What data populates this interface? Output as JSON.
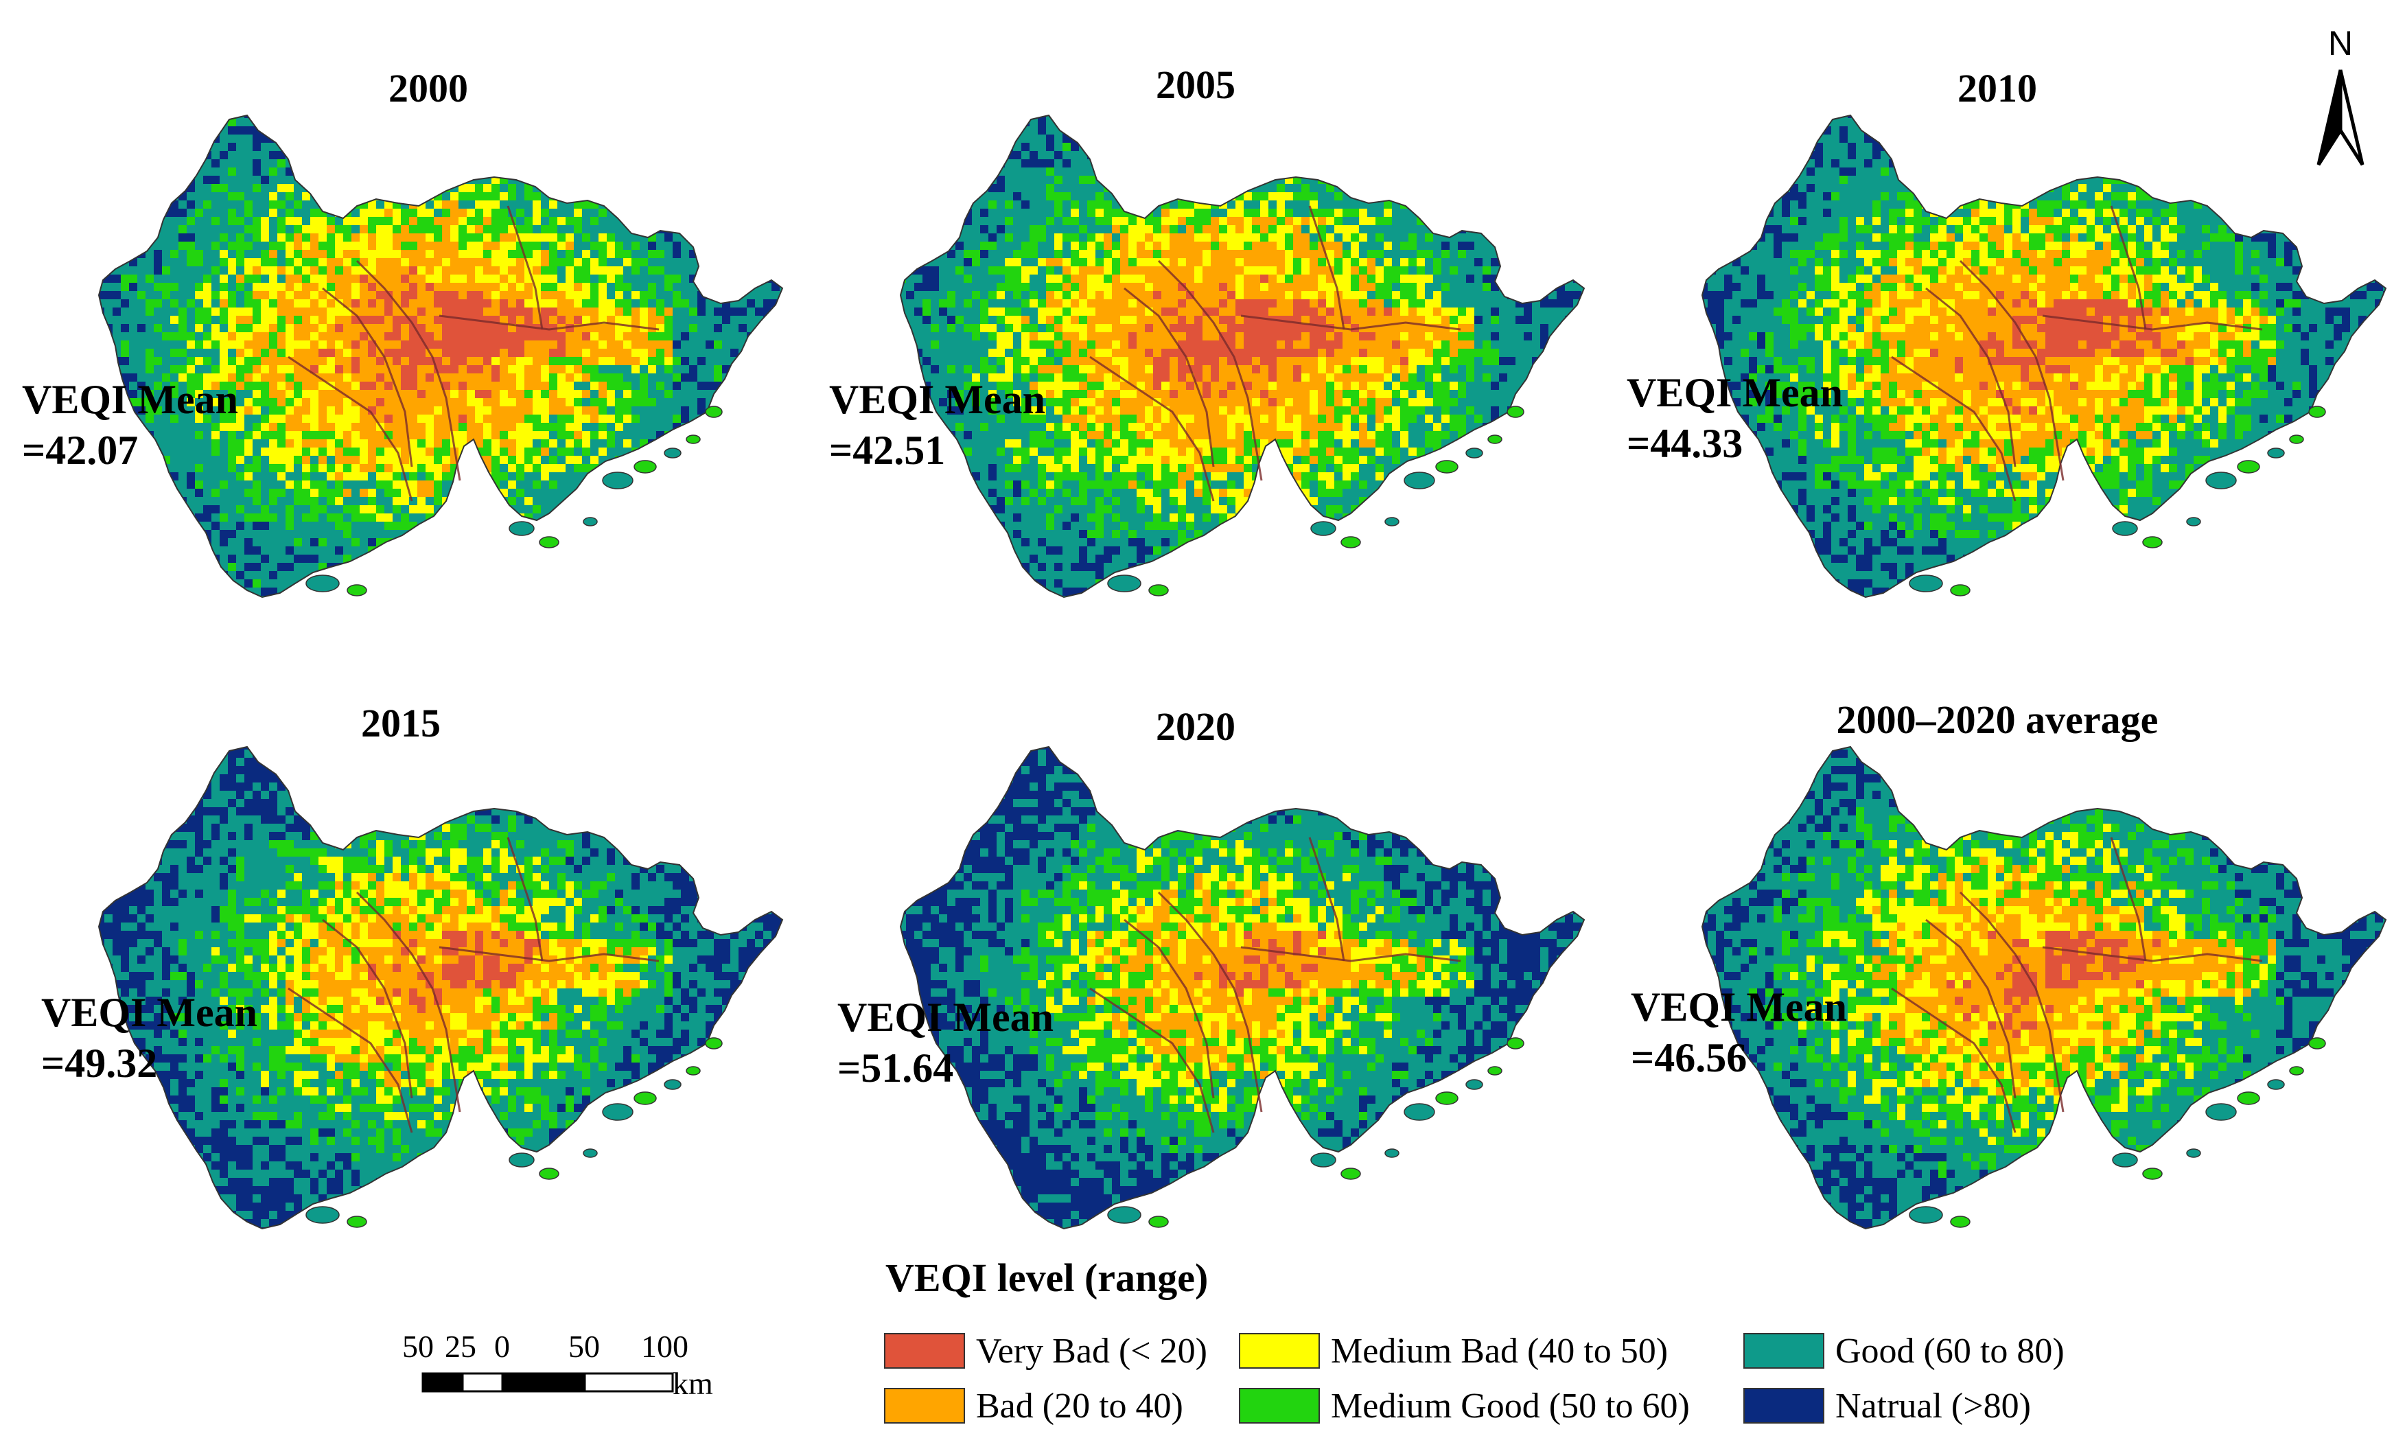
{
  "panels": [
    {
      "title": "2000",
      "mean_label": "VEQI Mean",
      "mean_value": "=42.07",
      "mean": 42.07
    },
    {
      "title": "2005",
      "mean_label": "VEQI Mean",
      "mean_value": "=42.51",
      "mean": 42.51
    },
    {
      "title": "2010",
      "mean_label": "VEQI Mean",
      "mean_value": "=44.33",
      "mean": 44.33
    },
    {
      "title": "2015",
      "mean_label": "VEQI Mean",
      "mean_value": "=49.32",
      "mean": 49.32
    },
    {
      "title": "2020",
      "mean_label": "VEQI Mean",
      "mean_value": "=51.64",
      "mean": 51.64
    },
    {
      "title": "2000–2020 average",
      "mean_label": "VEQI Mean",
      "mean_value": "=46.56",
      "mean": 46.56
    }
  ],
  "north_arrow": {
    "label": "N"
  },
  "legend": {
    "title": "VEQI level (range)",
    "items": [
      {
        "label": "Very Bad (< 20)",
        "color": "#e0533a"
      },
      {
        "label": "Bad (20 to 40)",
        "color": "#ffa500"
      },
      {
        "label": "Medium Bad (40 to 50)",
        "color": "#ffff00"
      },
      {
        "label": "Medium Good (50 to 60)",
        "color": "#22d40f"
      },
      {
        "label": "Good (60 to 80)",
        "color": "#0e9a8a"
      },
      {
        "label": "Natrual (>80)",
        "color": "#0a2a7f"
      }
    ]
  },
  "scale_bar": {
    "labels": [
      "50",
      "25",
      "0",
      "50",
      "100"
    ],
    "unit": "km"
  }
}
